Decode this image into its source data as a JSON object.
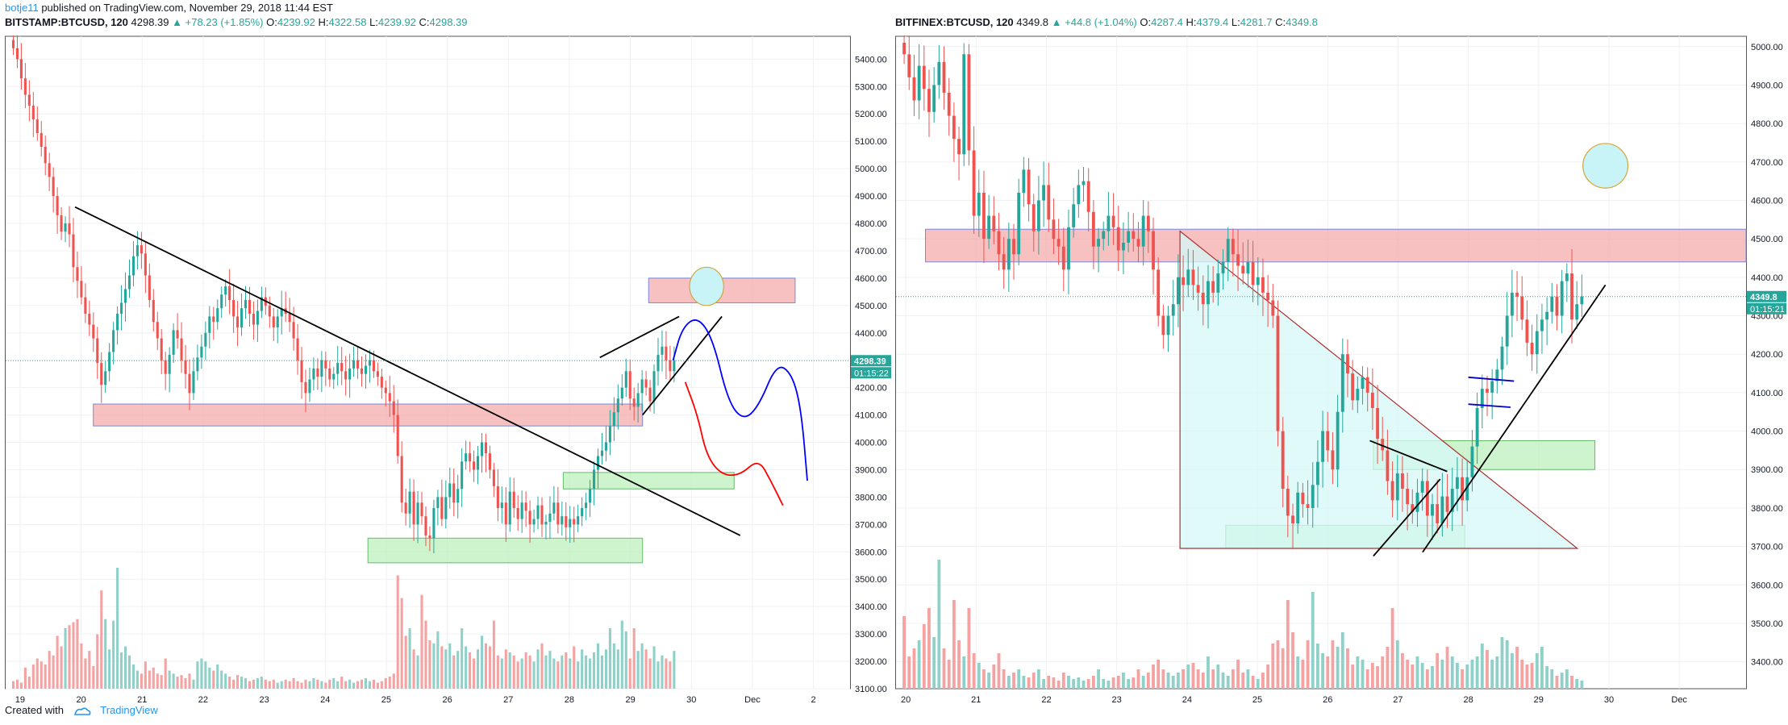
{
  "header": {
    "author": "botje11",
    "published_text": "published on TradingView.com, November 29, 2018 11:44 EST"
  },
  "footer": {
    "created_with": "Created with",
    "brand": "TradingView"
  },
  "chart_data": [
    {
      "type": "candlestick",
      "symbol": "BITSTAMP:BTCUSD, 120",
      "last": "4298.39",
      "change": "▲ +78.23 (+1.85%)",
      "ohlc": {
        "O": "4239.92",
        "H": "4322.58",
        "L": "4239.92",
        "C": "4298.39"
      },
      "price_label": "4298.39",
      "countdown_label": "01:15:22",
      "x_ticks": [
        "19",
        "20",
        "21",
        "22",
        "23",
        "24",
        "25",
        "26",
        "27",
        "28",
        "29",
        "30",
        "Dec",
        "2"
      ],
      "x_range": [
        18.75,
        2.6
      ],
      "y_ticks": [
        3100,
        3200,
        3300,
        3400,
        3500,
        3600,
        3700,
        3800,
        3900,
        4000,
        4100,
        4200,
        4300,
        4400,
        4500,
        4600,
        4700,
        4800,
        4900,
        5000,
        5100,
        5200,
        5300,
        5400
      ],
      "y_range": [
        3100,
        5460
      ],
      "price_closes": [
        5440,
        5400,
        5330,
        5270,
        5230,
        5180,
        5130,
        5080,
        5020,
        4970,
        4900,
        4830,
        4770,
        4800,
        4760,
        4640,
        4590,
        4530,
        4470,
        4430,
        4380,
        4290,
        4210,
        4260,
        4330,
        4410,
        4470,
        4510,
        4560,
        4610,
        4680,
        4720,
        4690,
        4610,
        4520,
        4440,
        4380,
        4300,
        4250,
        4320,
        4410,
        4380,
        4300,
        4250,
        4180,
        4260,
        4310,
        4350,
        4400,
        4460,
        4440,
        4490,
        4540,
        4570,
        4520,
        4460,
        4420,
        4490,
        4520,
        4470,
        4430,
        4480,
        4530,
        4500,
        4460,
        4420,
        4460,
        4490,
        4470,
        4440,
        4380,
        4300,
        4220,
        4180,
        4230,
        4270,
        4240,
        4300,
        4270,
        4230,
        4250,
        4290,
        4260,
        4230,
        4270,
        4300,
        4270,
        4250,
        4280,
        4300,
        4260,
        4240,
        4200,
        4180,
        4150,
        4100,
        3950,
        3780,
        3740,
        3820,
        3700,
        3780,
        3730,
        3660,
        3650,
        3760,
        3800,
        3720,
        3800,
        3850,
        3780,
        3830,
        3930,
        3960,
        3930,
        3900,
        3950,
        4000,
        3960,
        3900,
        3840,
        3760,
        3780,
        3700,
        3820,
        3760,
        3720,
        3780,
        3750,
        3700,
        3720,
        3770,
        3700,
        3710,
        3740,
        3780,
        3700,
        3730,
        3690,
        3720,
        3700,
        3730,
        3760,
        3780,
        3830,
        3900,
        3950,
        3970,
        4000,
        4060,
        4110,
        4160,
        4200,
        4260,
        4160,
        4130,
        4180,
        4230,
        4200,
        4150,
        4260,
        4320,
        4350,
        4300,
        4260,
        4300
      ],
      "volume_relative": [
        0.05,
        0.06,
        0.04,
        0.14,
        0.08,
        0.16,
        0.2,
        0.18,
        0.16,
        0.25,
        0.22,
        0.35,
        0.28,
        0.4,
        0.42,
        0.44,
        0.46,
        0.3,
        0.2,
        0.25,
        0.15,
        0.36,
        0.65,
        0.46,
        0.26,
        0.45,
        0.8,
        0.24,
        0.28,
        0.22,
        0.16,
        0.12,
        0.1,
        0.18,
        0.12,
        0.14,
        0.1,
        0.09,
        0.2,
        0.12,
        0.1,
        0.08,
        0.09,
        0.07,
        0.1,
        0.06,
        0.18,
        0.2,
        0.18,
        0.14,
        0.12,
        0.16,
        0.12,
        0.1,
        0.08,
        0.06,
        0.09,
        0.08,
        0.07,
        0.05,
        0.06,
        0.07,
        0.08,
        0.06,
        0.05,
        0.06,
        0.04,
        0.05,
        0.06,
        0.05,
        0.07,
        0.05,
        0.04,
        0.06,
        0.05,
        0.07,
        0.06,
        0.05,
        0.04,
        0.06,
        0.07,
        0.05,
        0.08,
        0.05,
        0.06,
        0.04,
        0.05,
        0.06,
        0.07,
        0.05,
        0.06,
        0.04,
        0.05,
        0.07,
        0.08,
        0.1,
        0.75,
        0.6,
        0.35,
        0.4,
        0.26,
        0.22,
        0.62,
        0.45,
        0.32,
        0.3,
        0.38,
        0.28,
        0.26,
        0.3,
        0.22,
        0.25,
        0.4,
        0.28,
        0.24,
        0.2,
        0.26,
        0.35,
        0.3,
        0.28,
        0.45,
        0.22,
        0.2,
        0.26,
        0.24,
        0.22,
        0.18,
        0.2,
        0.24,
        0.22,
        0.18,
        0.26,
        0.3,
        0.22,
        0.25,
        0.2,
        0.18,
        0.22,
        0.24,
        0.2,
        0.28,
        0.18,
        0.26,
        0.22,
        0.2,
        0.24,
        0.3,
        0.22,
        0.26,
        0.4,
        0.3,
        0.26,
        0.45,
        0.38,
        0.2,
        0.4,
        0.25,
        0.3,
        0.26,
        0.2,
        0.28,
        0.18,
        0.22,
        0.2,
        0.18,
        0.25,
        0.2,
        0.16,
        0.12,
        0.1
      ],
      "annotations": [
        {
          "kind": "trendline",
          "color": "#000000",
          "from": [
            19.9,
            4860
          ],
          "to": [
            30.8,
            3660
          ]
        },
        {
          "kind": "trendline",
          "color": "#000000",
          "from": [
            28.5,
            4310
          ],
          "to": [
            29.8,
            4460
          ]
        },
        {
          "kind": "trendline",
          "color": "#000000",
          "from": [
            29.2,
            4100
          ],
          "to": [
            30.5,
            4460
          ]
        },
        {
          "kind": "zone",
          "color": "#f4a6a6",
          "border": "#7b87d9",
          "x": [
            20.2,
            29.2
          ],
          "y": [
            4060,
            4140
          ]
        },
        {
          "kind": "zone",
          "color": "#f4a6a6",
          "border": "#7b87d9",
          "x": [
            29.3,
            31.7
          ],
          "y": [
            4510,
            4600
          ]
        },
        {
          "kind": "zone",
          "color": "#b8f0b8",
          "border": "#66bb6a",
          "x": [
            24.7,
            29.2
          ],
          "y": [
            3560,
            3650
          ]
        },
        {
          "kind": "zone",
          "color": "#b8f0b8",
          "border": "#66bb6a",
          "x": [
            27.9,
            30.7
          ],
          "y": [
            3830,
            3890
          ]
        },
        {
          "kind": "circle",
          "color": "#c8f4f8",
          "border": "#d4a53a",
          "center": [
            30.25,
            4570
          ],
          "r_x": 0.28,
          "r_y": 70
        },
        {
          "kind": "path",
          "color": "#ff0000",
          "points": [
            [
              29.9,
              4220
            ],
            [
              30.1,
              4100
            ],
            [
              30.25,
              3950
            ],
            [
              30.5,
              3880
            ],
            [
              30.8,
              3880
            ],
            [
              31.1,
              3940
            ],
            [
              31.3,
              3860
            ],
            [
              31.5,
              3770
            ]
          ]
        },
        {
          "kind": "path",
          "color": "#0000ff",
          "points": [
            [
              29.7,
              4300
            ],
            [
              29.85,
              4420
            ],
            [
              30.1,
              4460
            ],
            [
              30.35,
              4380
            ],
            [
              30.6,
              4150
            ],
            [
              30.85,
              4080
            ],
            [
              31.1,
              4130
            ],
            [
              31.4,
              4290
            ],
            [
              31.65,
              4250
            ],
            [
              31.8,
              4120
            ],
            [
              31.9,
              3860
            ]
          ]
        }
      ]
    },
    {
      "type": "candlestick",
      "symbol": "BITFINEX:BTCUSD, 120",
      "last": "4349.8",
      "change": "▲ +44.8 (+1.04%)",
      "ohlc": {
        "O": "4287.4",
        "H": "4379.4",
        "L": "4281.7",
        "C": "4349.8"
      },
      "price_label": "4349.8",
      "countdown_label": "01:15:21",
      "x_ticks": [
        "20",
        "21",
        "22",
        "23",
        "24",
        "25",
        "26",
        "27",
        "28",
        "29",
        "30",
        "Dec"
      ],
      "x_range": [
        19.85,
        31.95
      ],
      "y_ticks": [
        3400,
        3500,
        3600,
        3700,
        3800,
        3900,
        4000,
        4100,
        4200,
        4300,
        4400,
        4500,
        4600,
        4700,
        4800,
        4900,
        5000
      ],
      "y_range": [
        3330,
        5010
      ],
      "price_closes": [
        4980,
        4920,
        4860,
        4950,
        4890,
        4830,
        4900,
        4960,
        4880,
        4820,
        4760,
        4720,
        4980,
        4730,
        4560,
        4620,
        4500,
        4560,
        4520,
        4460,
        4420,
        4500,
        4460,
        4620,
        4680,
        4590,
        4520,
        4600,
        4640,
        4550,
        4500,
        4480,
        4420,
        4530,
        4590,
        4640,
        4650,
        4570,
        4480,
        4500,
        4520,
        4560,
        4530,
        4470,
        4490,
        4520,
        4500,
        4480,
        4560,
        4520,
        4420,
        4300,
        4250,
        4300,
        4330,
        4400,
        4380,
        4420,
        4380,
        4360,
        4330,
        4390,
        4360,
        4410,
        4440,
        4500,
        4460,
        4430,
        4410,
        4440,
        4380,
        4400,
        4360,
        4340,
        4300,
        4000,
        3850,
        3780,
        3760,
        3840,
        3810,
        3800,
        3860,
        3920,
        4000,
        3950,
        3900,
        4050,
        4200,
        4150,
        4080,
        4110,
        4140,
        4100,
        4060,
        3980,
        3950,
        3870,
        3820,
        3890,
        3850,
        3810,
        3790,
        3840,
        3870,
        3780,
        3810,
        3760,
        3830,
        3790,
        3850,
        3880,
        3820,
        3880,
        3960,
        4060,
        4110,
        4100,
        4130,
        4160,
        4220,
        4300,
        4360,
        4350,
        4290,
        4230,
        4200,
        4260,
        4290,
        4310,
        4350,
        4300,
        4390,
        4410,
        4290,
        4330,
        4350
      ],
      "volume_relative": [
        0.45,
        0.2,
        0.25,
        0.3,
        0.4,
        0.5,
        0.32,
        0.8,
        0.25,
        0.18,
        0.55,
        0.3,
        0.2,
        0.5,
        0.22,
        0.16,
        0.12,
        0.1,
        0.15,
        0.22,
        0.12,
        0.08,
        0.1,
        0.12,
        0.08,
        0.07,
        0.1,
        0.12,
        0.06,
        0.08,
        0.07,
        0.05,
        0.1,
        0.08,
        0.06,
        0.07,
        0.05,
        0.06,
        0.08,
        0.12,
        0.06,
        0.05,
        0.07,
        0.08,
        0.1,
        0.06,
        0.07,
        0.12,
        0.08,
        0.1,
        0.15,
        0.18,
        0.12,
        0.1,
        0.08,
        0.1,
        0.12,
        0.15,
        0.16,
        0.12,
        0.1,
        0.2,
        0.12,
        0.15,
        0.1,
        0.08,
        0.12,
        0.18,
        0.1,
        0.12,
        0.08,
        0.06,
        0.1,
        0.15,
        0.28,
        0.3,
        0.25,
        0.55,
        0.35,
        0.2,
        0.18,
        0.3,
        0.6,
        0.28,
        0.22,
        0.2,
        0.3,
        0.26,
        0.35,
        0.25,
        0.15,
        0.2,
        0.18,
        0.12,
        0.16,
        0.14,
        0.2,
        0.26,
        0.5,
        0.3,
        0.22,
        0.18,
        0.15,
        0.2,
        0.16,
        0.12,
        0.14,
        0.22,
        0.18,
        0.26,
        0.2,
        0.16,
        0.12,
        0.15,
        0.18,
        0.2,
        0.28,
        0.24,
        0.18,
        0.2,
        0.32,
        0.3,
        0.22,
        0.26,
        0.18,
        0.15,
        0.16,
        0.22,
        0.26,
        0.14,
        0.12,
        0.08,
        0.1,
        0.12,
        0.08,
        0.06,
        0.05
      ],
      "annotations": [
        {
          "kind": "zone",
          "color": "#f4a6a6",
          "border": "#7b87d9",
          "x": [
            20.28,
            31.95
          ],
          "y": [
            4440,
            4525
          ]
        },
        {
          "kind": "zone",
          "color": "#b8f0b8",
          "border": "#66bb6a",
          "x": [
            26.65,
            29.8
          ],
          "y": [
            3900,
            3975
          ]
        },
        {
          "kind": "zone",
          "color": "#b8f0b8",
          "border": "#66bb6a",
          "x": [
            24.55,
            27.95
          ],
          "y": [
            3695,
            3755
          ]
        },
        {
          "kind": "triangle",
          "color": "#d6f8f8",
          "border": "#a83232",
          "points": [
            [
              23.9,
              4520
            ],
            [
              23.9,
              3695
            ],
            [
              29.55,
              3695
            ]
          ]
        },
        {
          "kind": "trendline",
          "color": "#000000",
          "from": [
            26.65,
            3675
          ],
          "to": [
            27.6,
            3875
          ]
        },
        {
          "kind": "trendline",
          "color": "#000000",
          "from": [
            27.35,
            3685
          ],
          "to": [
            29.95,
            4380
          ]
        },
        {
          "kind": "trendline",
          "color": "#000000",
          "from": [
            26.6,
            3975
          ],
          "to": [
            27.7,
            3895
          ]
        },
        {
          "kind": "trendline",
          "color": "#0000cc",
          "from": [
            28.0,
            4140
          ],
          "to": [
            28.65,
            4130
          ]
        },
        {
          "kind": "trendline",
          "color": "#0000cc",
          "from": [
            28.0,
            4070
          ],
          "to": [
            28.6,
            4062
          ]
        },
        {
          "kind": "circle",
          "color": "#c8f4f8",
          "border": "#d4a53a",
          "center": [
            29.95,
            4690
          ],
          "r_x": 0.32,
          "r_y": 58
        }
      ]
    }
  ]
}
